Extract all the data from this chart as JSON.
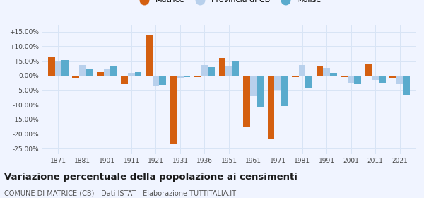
{
  "years": [
    1871,
    1881,
    1901,
    1911,
    1921,
    1931,
    1936,
    1951,
    1961,
    1971,
    1981,
    1991,
    2001,
    2011,
    2021
  ],
  "matrice": [
    6.5,
    -0.8,
    1.2,
    -3.0,
    14.0,
    -23.5,
    -0.5,
    6.0,
    -17.5,
    -21.5,
    -0.5,
    3.2,
    -0.5,
    3.8,
    -1.0
  ],
  "provincia_cb": [
    5.0,
    3.5,
    2.0,
    1.0,
    -3.5,
    -1.0,
    3.5,
    3.0,
    -7.0,
    -5.0,
    3.5,
    2.5,
    -2.5,
    -1.5,
    -3.0
  ],
  "molise": [
    5.2,
    2.2,
    3.0,
    1.2,
    -3.2,
    -0.5,
    2.8,
    5.0,
    -11.0,
    -10.5,
    -4.5,
    1.0,
    -3.0,
    -2.5,
    -6.5
  ],
  "color_matrice": "#d45f10",
  "color_provincia": "#b8d0ec",
  "color_molise": "#5aabcd",
  "title": "Variazione percentuale della popolazione ai censimenti",
  "subtitle": "COMUNE DI MATRICE (CB) - Dati ISTAT - Elaborazione TUTTITALIA.IT",
  "ylim": [
    -27,
    17
  ],
  "yticks": [
    -25,
    -20,
    -15,
    -10,
    -5,
    0,
    5,
    10,
    15
  ],
  "ytick_labels": [
    "-25.00%",
    "-20.00%",
    "-15.00%",
    "-10.00%",
    "-5.00%",
    "0.00%",
    "+5.00%",
    "+10.00%",
    "+15.00%"
  ],
  "bar_width": 0.28,
  "background_color": "#f0f4ff",
  "grid_color": "#d8e4f5"
}
